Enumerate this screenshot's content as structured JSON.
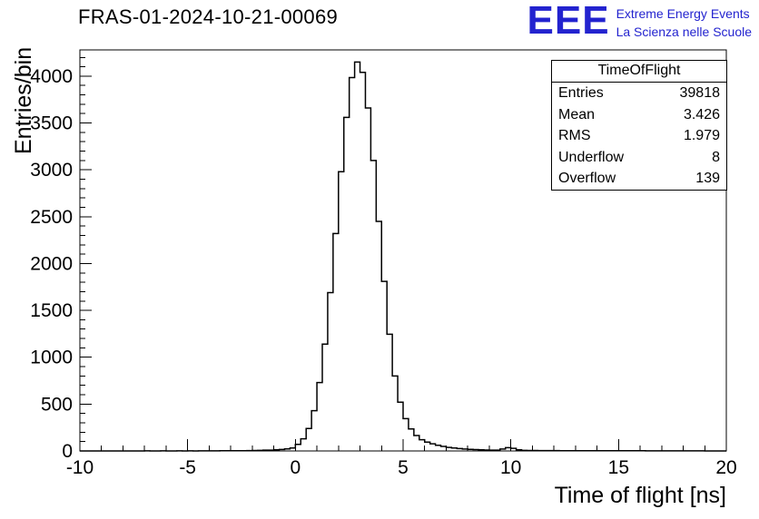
{
  "logo": {
    "acronym": "EEE",
    "line1": "Extreme Energy Events",
    "line2": "La Scienza nelle Scuole",
    "color": "#2323cf"
  },
  "chart_data": {
    "type": "bar",
    "title": "FRAS-01-2024-10-21-00069",
    "xlabel": "Time of flight [ns]",
    "ylabel": "Entries/bin",
    "xlim": [
      -10,
      20
    ],
    "ylim": [
      0,
      4280
    ],
    "grid": false,
    "legend": "none",
    "line_color": "#000000",
    "bin_start": -10,
    "bin_width": 0.25,
    "x_tick_values": [
      -10,
      -5,
      0,
      5,
      10,
      15,
      20
    ],
    "x_tick_labels": [
      "-10",
      "-5",
      "0",
      "5",
      "10",
      "15",
      "20"
    ],
    "x_minor_step": 1,
    "y_tick_values": [
      0,
      500,
      1000,
      1500,
      2000,
      2500,
      3000,
      3500,
      4000
    ],
    "y_tick_labels": [
      "0",
      "500",
      "1000",
      "1500",
      "2000",
      "2500",
      "3000",
      "3500",
      "4000"
    ],
    "y_minor_step": 100,
    "values": [
      0,
      0,
      0,
      0,
      0,
      0,
      0,
      0,
      0,
      0,
      0,
      0,
      1,
      0,
      0,
      1,
      0,
      0,
      1,
      0,
      1,
      0,
      1,
      1,
      1,
      1,
      2,
      2,
      2,
      3,
      3,
      4,
      5,
      6,
      8,
      9,
      12,
      16,
      22,
      32,
      70,
      130,
      240,
      430,
      730,
      1140,
      1690,
      2320,
      2980,
      3560,
      3985,
      4150,
      4040,
      3660,
      3100,
      2450,
      1810,
      1245,
      800,
      520,
      345,
      235,
      165,
      120,
      95,
      76,
      60,
      48,
      38,
      31,
      25,
      20,
      17,
      14,
      12,
      10,
      9,
      8,
      20,
      35,
      28,
      12,
      6,
      5,
      5,
      4,
      4,
      4,
      4,
      3,
      3,
      3,
      3,
      3,
      3,
      2,
      2,
      2,
      2,
      2,
      2,
      2,
      2,
      2,
      2,
      1,
      1,
      1,
      1,
      1,
      1,
      1,
      1,
      1,
      1,
      1,
      0,
      0,
      0,
      0
    ],
    "stats_box": {
      "title": "TimeOfFlight",
      "rows": [
        {
          "label": "Entries",
          "value": "39818"
        },
        {
          "label": "Mean",
          "value": "3.426"
        },
        {
          "label": "RMS",
          "value": "1.979"
        },
        {
          "label": "Underflow",
          "value": "8"
        },
        {
          "label": "Overflow",
          "value": "139"
        }
      ]
    }
  }
}
